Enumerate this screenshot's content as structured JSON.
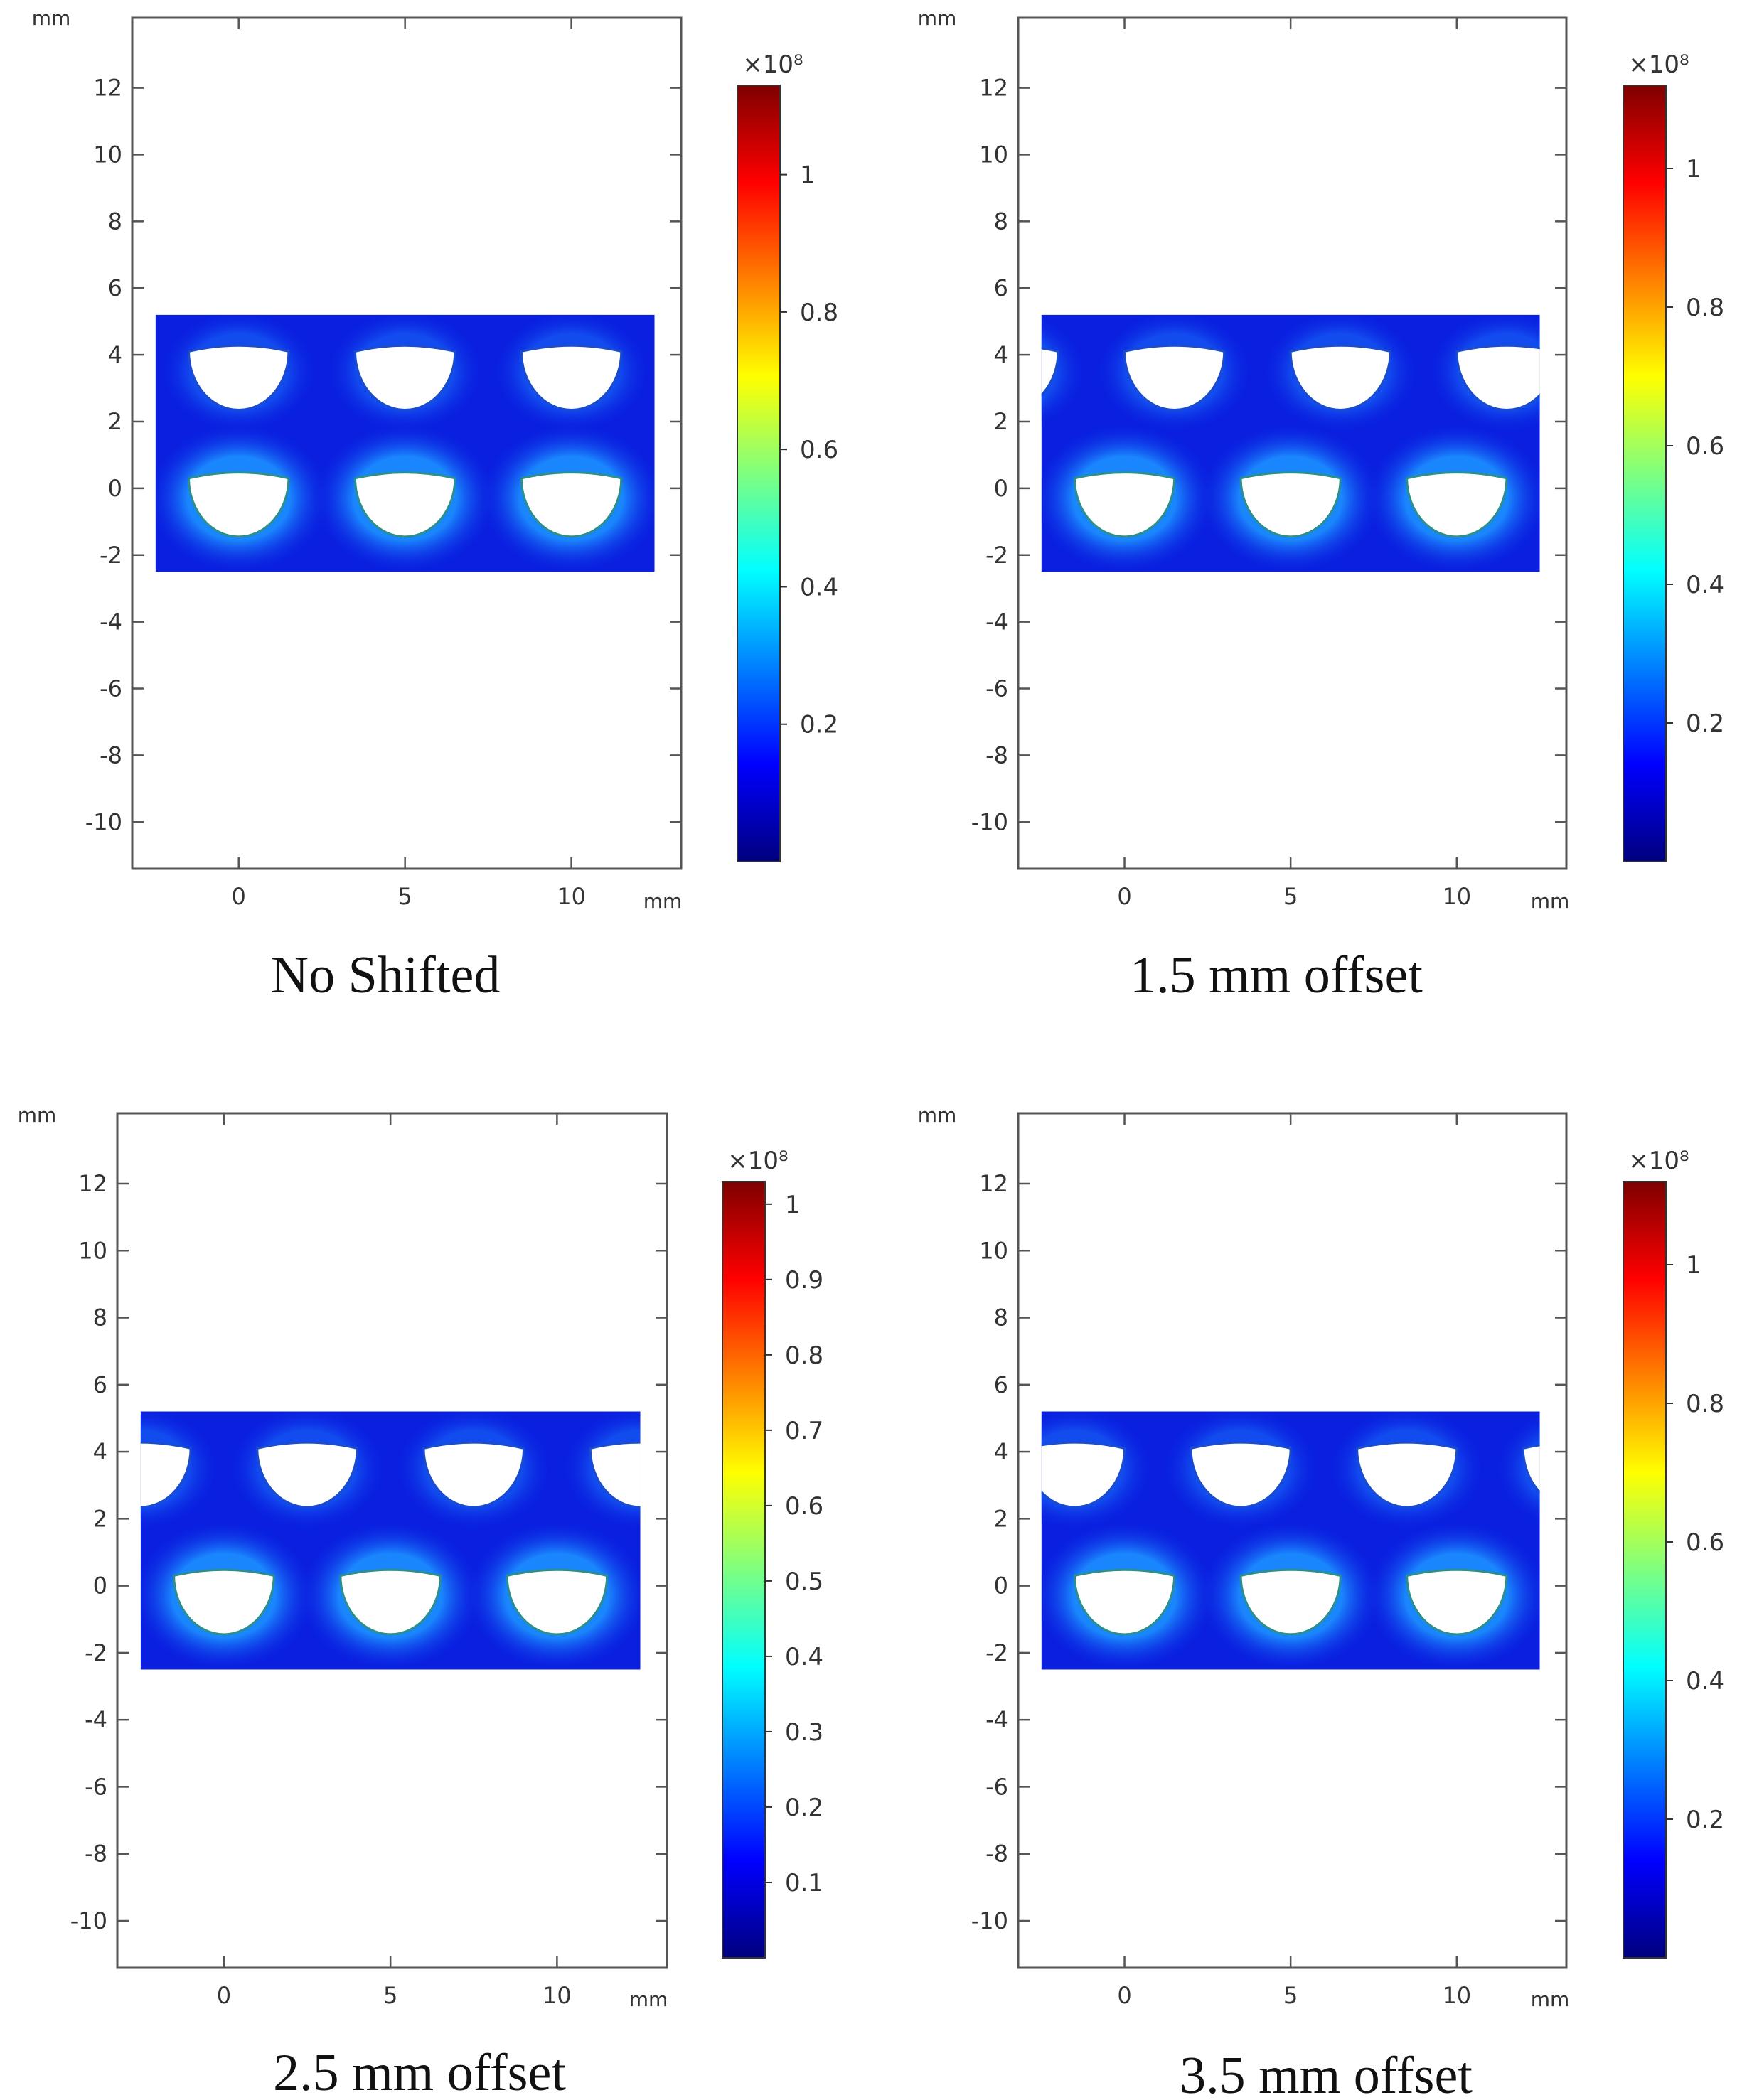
{
  "axis_unit": "mm",
  "x_ticks": [
    0,
    5,
    10
  ],
  "y_ticks": [
    12,
    10,
    8,
    6,
    4,
    2,
    0,
    -2,
    -4,
    -6,
    -8,
    -10
  ],
  "x_range": [
    -3.2,
    13.3
  ],
  "y_range": [
    -11.4,
    14.1
  ],
  "plate_extent": {
    "x": [
      -2.5,
      12.5
    ],
    "y": [
      -2.5,
      5.2
    ]
  },
  "colorbar_exponent": "×10⁸",
  "colormap": [
    "#00007f",
    "#0000ff",
    "#007fff",
    "#00ffff",
    "#7fff7f",
    "#ffff00",
    "#ff7f00",
    "#ff0000",
    "#7f0000"
  ],
  "panels": [
    {
      "caption": "No Shifted",
      "offset_mm": 0,
      "cb_max": 1.13,
      "cb_ticks": [
        "0.2",
        "0.4",
        "0.6",
        "0.8",
        "1"
      ],
      "cb_values": [
        0.2,
        0.4,
        0.6,
        0.8,
        1.0
      ]
    },
    {
      "caption": "1.5 mm offset",
      "offset_mm": 1.5,
      "cb_max": 1.12,
      "cb_ticks": [
        "0.2",
        "0.4",
        "0.6",
        "0.8",
        "1"
      ],
      "cb_values": [
        0.2,
        0.4,
        0.6,
        0.8,
        1.0
      ]
    },
    {
      "caption": "2.5 mm offset",
      "offset_mm": 2.5,
      "cb_max": 1.03,
      "cb_ticks": [
        "0.1",
        "0.2",
        "0.3",
        "0.4",
        "0.5",
        "0.6",
        "0.7",
        "0.8",
        "0.9",
        "1"
      ],
      "cb_values": [
        0.1,
        0.2,
        0.3,
        0.4,
        0.5,
        0.6,
        0.7,
        0.8,
        0.9,
        1.0
      ]
    },
    {
      "caption": "3.5 mm offset",
      "offset_mm": 3.5,
      "cb_max": 1.12,
      "cb_ticks": [
        "0.2",
        "0.4",
        "0.6",
        "0.8",
        "1"
      ],
      "cb_values": [
        0.2,
        0.4,
        0.6,
        0.8,
        1.0
      ]
    }
  ]
}
